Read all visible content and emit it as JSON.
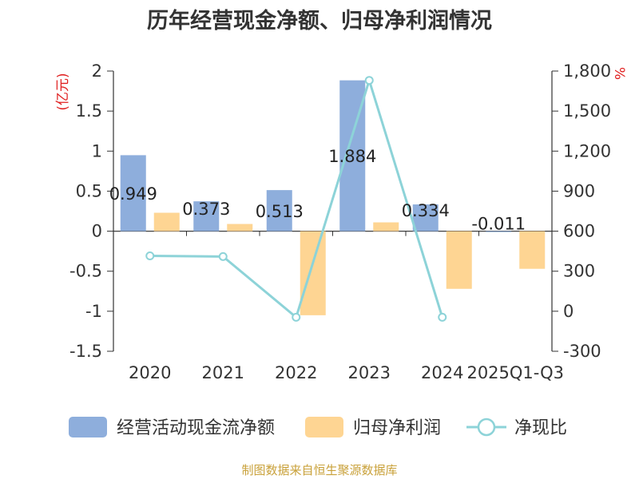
{
  "title": "历年经营现金净额、归母净利润情况",
  "source": "制图数据来自恒生聚源数据库",
  "chart_data": {
    "type": "bar",
    "categories": [
      "2020",
      "2021",
      "2022",
      "2023",
      "2024",
      "2025Q1-Q3"
    ],
    "left_axis": {
      "unit": "(亿元)",
      "ylim": [
        -1.5,
        2
      ],
      "ticks": [
        "2",
        "1.5",
        "1",
        "0.5",
        "0",
        "-0.5",
        "-1",
        "-1.5"
      ],
      "tick_values": [
        2,
        1.5,
        1,
        0.5,
        0,
        -0.5,
        -1,
        -1.5
      ]
    },
    "right_axis": {
      "unit": "%",
      "ylim": [
        -300,
        1800
      ],
      "ticks": [
        "1,800",
        "1,500",
        "1,200",
        "900",
        "600",
        "300",
        "0",
        "-300"
      ],
      "tick_values": [
        1800,
        1500,
        1200,
        900,
        600,
        300,
        0,
        -300
      ]
    },
    "series": [
      {
        "name": "经营活动现金流净额",
        "type": "bar",
        "axis": "left",
        "color": "#8eaedc",
        "values": [
          0.949,
          0.373,
          0.513,
          1.884,
          0.334,
          -0.011
        ],
        "labels": [
          "0.949",
          "0.373",
          "0.513",
          "1.884",
          "0.334",
          "-0.011"
        ]
      },
      {
        "name": "归母净利润",
        "type": "bar",
        "axis": "left",
        "color": "#fed593",
        "values": [
          0.23,
          0.09,
          -1.05,
          0.11,
          -0.72,
          -0.47
        ]
      },
      {
        "name": "净现比",
        "type": "line",
        "axis": "right",
        "color": "#8dd3d8",
        "values": [
          415,
          410,
          -45,
          1730,
          -45,
          null
        ]
      }
    ],
    "legend_position": "bottom",
    "grid": false
  }
}
